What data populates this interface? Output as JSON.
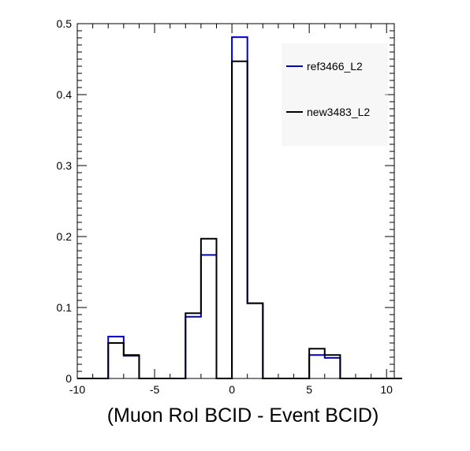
{
  "chart_data": {
    "type": "step-histogram",
    "title": "",
    "xlabel": "(Muon RoI BCID - Event BCID)",
    "ylabel": "",
    "xlim": [
      -10,
      10.5
    ],
    "ylim": [
      0,
      0.5
    ],
    "bin_edges": [
      -10,
      -9,
      -8,
      -7,
      -6,
      -5,
      -4,
      -3,
      -2,
      -1,
      0,
      1,
      2,
      3,
      4,
      5,
      6,
      7,
      8,
      9,
      10,
      11
    ],
    "x_ticks": [
      -10,
      -5,
      0,
      5,
      10
    ],
    "y_ticks": [
      0,
      0.1,
      0.2,
      0.3,
      0.4,
      0.5
    ],
    "x_tick_labels": [
      "-10",
      "-5",
      "0",
      "5",
      "10"
    ],
    "y_tick_labels": [
      "0",
      "0.1",
      "0.2",
      "0.3",
      "0.4",
      "0.5"
    ],
    "grid": false,
    "legend_position": "top-right",
    "series": [
      {
        "name": "ref3466_L2",
        "color": "#0000cc",
        "values": [
          0,
          0,
          0.059,
          0.032,
          0,
          0,
          0,
          0.087,
          0.174,
          0,
          0.481,
          0.106,
          0,
          0,
          0,
          0.033,
          0.029,
          0,
          0,
          0,
          0
        ]
      },
      {
        "name": "new3483_L2",
        "color": "#000000",
        "values": [
          0,
          0,
          0.05,
          0.033,
          0,
          0,
          0,
          0.092,
          0.197,
          0,
          0.447,
          0.106,
          0,
          0,
          0,
          0.042,
          0.033,
          0,
          0,
          0,
          0
        ]
      }
    ]
  }
}
